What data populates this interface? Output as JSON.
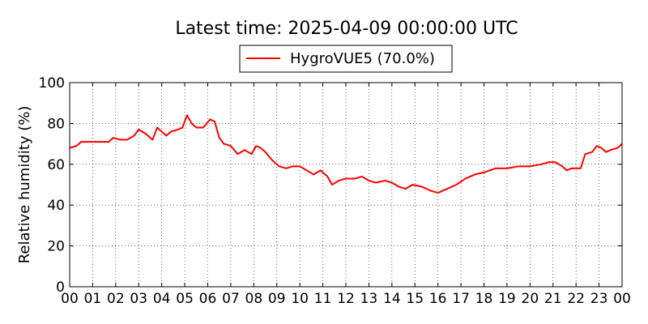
{
  "chart_data": {
    "type": "line",
    "title": "Latest time: 2025-04-09 00:00:00 UTC",
    "ylabel": "Relative humidity (%)",
    "xlabel": "",
    "xlim": [
      0,
      24
    ],
    "ylim": [
      0,
      100
    ],
    "x_tick_labels": [
      "00",
      "01",
      "02",
      "03",
      "04",
      "05",
      "06",
      "07",
      "08",
      "09",
      "10",
      "11",
      "12",
      "13",
      "14",
      "15",
      "16",
      "17",
      "18",
      "19",
      "20",
      "21",
      "22",
      "23",
      "00"
    ],
    "y_tick_labels": [
      "0",
      "20",
      "40",
      "60",
      "80",
      "100"
    ],
    "grid": true,
    "legend_position": "top-center",
    "line_color": "#ff0000",
    "series": [
      {
        "name": "HygroVUE5 (70.0%)",
        "x": [
          0.0,
          0.3,
          0.5,
          1.0,
          1.5,
          1.7,
          1.9,
          2.2,
          2.5,
          2.8,
          3.0,
          3.3,
          3.6,
          3.8,
          4.0,
          4.2,
          4.4,
          4.7,
          4.9,
          5.1,
          5.3,
          5.5,
          5.8,
          6.1,
          6.3,
          6.5,
          6.7,
          7.0,
          7.3,
          7.6,
          7.9,
          8.1,
          8.3,
          8.5,
          8.8,
          9.1,
          9.4,
          9.7,
          10.0,
          10.3,
          10.6,
          10.9,
          11.2,
          11.4,
          11.7,
          12.0,
          12.4,
          12.7,
          13.0,
          13.3,
          13.7,
          14.0,
          14.3,
          14.6,
          14.9,
          15.3,
          15.7,
          16.0,
          16.4,
          16.8,
          17.2,
          17.6,
          18.0,
          18.5,
          19.0,
          19.5,
          20.0,
          20.5,
          20.8,
          21.1,
          21.4,
          21.6,
          21.8,
          22.0,
          22.2,
          22.4,
          22.7,
          22.9,
          23.1,
          23.3,
          23.5,
          23.8,
          24.0
        ],
        "y": [
          68,
          69,
          71,
          71,
          71,
          71,
          73,
          72,
          72,
          74,
          77,
          75,
          72,
          78,
          76,
          74,
          76,
          77,
          78,
          84,
          80,
          78,
          78,
          82,
          81,
          73,
          70,
          69,
          65,
          67,
          65,
          69,
          68,
          66,
          62,
          59,
          58,
          59,
          59,
          57,
          55,
          57,
          54,
          50,
          52,
          53,
          53,
          54,
          52,
          51,
          52,
          51,
          49,
          48,
          50,
          49,
          47,
          46,
          48,
          50,
          53,
          55,
          56,
          58,
          58,
          59,
          59,
          60,
          61,
          61,
          59,
          57,
          58,
          58,
          58,
          65,
          66,
          69,
          68,
          66,
          67,
          68,
          70
        ]
      }
    ]
  }
}
